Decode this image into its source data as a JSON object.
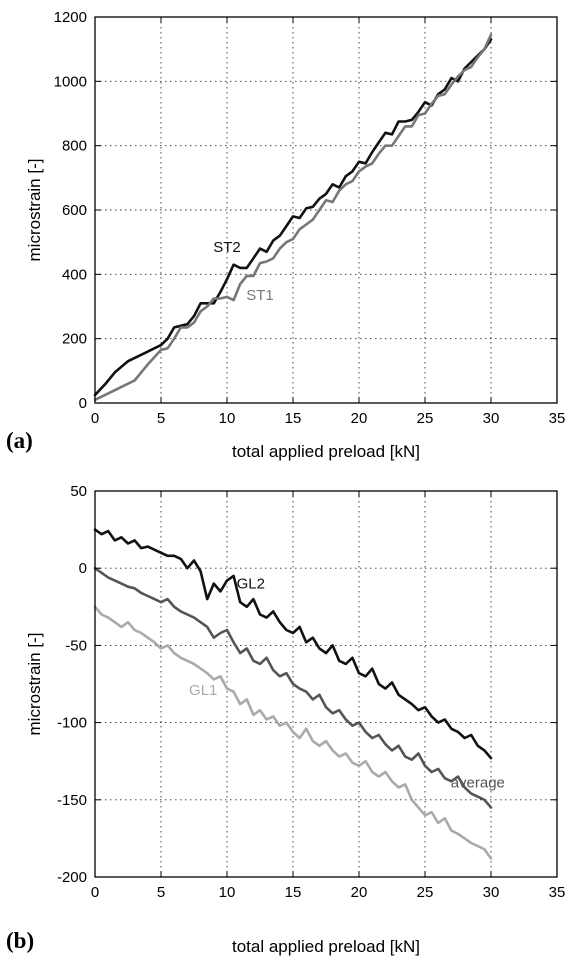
{
  "chart_data": [
    {
      "panel_label": "(a)",
      "type": "line",
      "xlabel": "total applied preload [kN]",
      "ylabel": "microstrain [-]",
      "xlim": [
        0,
        35
      ],
      "ylim": [
        0,
        1200
      ],
      "xticks": [
        0,
        5,
        10,
        15,
        20,
        25,
        30,
        35
      ],
      "yticks": [
        0,
        200,
        400,
        600,
        800,
        1000,
        1200
      ],
      "grid": true,
      "series": [
        {
          "name": "ST2",
          "color": "#111111",
          "x": [
            0,
            0.8,
            1.5,
            2.5,
            3.5,
            4.5,
            5,
            5.5,
            6,
            6.5,
            7,
            7.5,
            8,
            8.5,
            9,
            9.5,
            10,
            10.5,
            11,
            11.5,
            12,
            12.5,
            13,
            13.5,
            14,
            14.5,
            15,
            15.5,
            16,
            16.5,
            17,
            17.5,
            18,
            18.5,
            19,
            19.5,
            20,
            20.5,
            21,
            21.5,
            22,
            22.5,
            23,
            23.5,
            24,
            24.5,
            25,
            25.5,
            26,
            26.5,
            27,
            27.5,
            28,
            28.5,
            29,
            29.5,
            30
          ],
          "values": [
            25,
            60,
            95,
            130,
            150,
            170,
            180,
            200,
            235,
            240,
            245,
            270,
            310,
            310,
            310,
            345,
            385,
            430,
            420,
            420,
            450,
            480,
            470,
            505,
            520,
            550,
            580,
            575,
            605,
            610,
            635,
            650,
            680,
            670,
            705,
            720,
            750,
            745,
            780,
            810,
            840,
            835,
            875,
            875,
            880,
            905,
            935,
            925,
            960,
            975,
            1010,
            1000,
            1040,
            1060,
            1080,
            1100,
            1130
          ]
        },
        {
          "name": "ST1",
          "color": "#777777",
          "x": [
            0,
            1,
            2,
            3,
            4,
            5,
            5.5,
            6,
            6.5,
            7,
            7.5,
            8,
            8.5,
            9,
            9.5,
            10,
            10.5,
            11,
            11.5,
            12,
            12.5,
            13,
            13.5,
            14,
            14.5,
            15,
            15.5,
            16,
            16.5,
            17,
            17.5,
            18,
            18.5,
            19,
            19.5,
            20,
            20.5,
            21,
            21.5,
            22,
            22.5,
            23,
            23.5,
            24,
            24.5,
            25,
            25.5,
            26,
            26.5,
            27,
            27.5,
            28,
            28.5,
            29,
            29.5,
            30
          ],
          "values": [
            10,
            30,
            50,
            70,
            120,
            165,
            170,
            200,
            235,
            235,
            250,
            285,
            300,
            325,
            325,
            330,
            320,
            370,
            395,
            395,
            435,
            440,
            450,
            480,
            500,
            510,
            540,
            555,
            570,
            600,
            630,
            625,
            660,
            680,
            690,
            720,
            735,
            745,
            775,
            800,
            800,
            830,
            860,
            860,
            895,
            900,
            930,
            955,
            960,
            990,
            1015,
            1035,
            1045,
            1075,
            1100,
            1145
          ]
        }
      ],
      "annotations": [
        {
          "text": "ST2",
          "x": 10.0,
          "y": 470
        },
        {
          "text": "ST1",
          "x": 12.5,
          "y": 320
        }
      ]
    },
    {
      "panel_label": "(b)",
      "type": "line",
      "xlabel": "total applied preload [kN]",
      "ylabel": "microstrain [-]",
      "xlim": [
        0,
        35
      ],
      "ylim": [
        -200,
        50
      ],
      "xticks": [
        0,
        5,
        10,
        15,
        20,
        25,
        30,
        35
      ],
      "yticks": [
        -200,
        -150,
        -100,
        -50,
        0,
        50
      ],
      "grid": true,
      "series": [
        {
          "name": "GL2",
          "color": "#111111",
          "x": [
            0,
            0.5,
            1,
            1.5,
            2,
            2.5,
            3,
            3.5,
            4,
            4.5,
            5,
            5.5,
            6,
            6.5,
            7,
            7.5,
            8,
            8.5,
            9,
            9.5,
            10,
            10.5,
            11,
            11.5,
            12,
            12.5,
            13,
            13.5,
            14,
            14.5,
            15,
            15.5,
            16,
            16.5,
            17,
            17.5,
            18,
            18.5,
            19,
            19.5,
            20,
            20.5,
            21,
            21.5,
            22,
            22.5,
            23,
            23.5,
            24,
            24.5,
            25,
            25.5,
            26,
            26.5,
            27,
            27.5,
            28,
            28.5,
            29,
            29.5,
            30
          ],
          "values": [
            25,
            22,
            24,
            18,
            20,
            16,
            18,
            13,
            14,
            12,
            10,
            8,
            8,
            6,
            0,
            5,
            -2,
            -20,
            -10,
            -15,
            -8,
            -5,
            -22,
            -25,
            -20,
            -30,
            -32,
            -28,
            -35,
            -40,
            -42,
            -38,
            -48,
            -45,
            -52,
            -55,
            -50,
            -60,
            -62,
            -58,
            -68,
            -70,
            -65,
            -75,
            -78,
            -74,
            -82,
            -85,
            -88,
            -92,
            -90,
            -96,
            -100,
            -98,
            -104,
            -106,
            -110,
            -108,
            -115,
            -118,
            -123
          ]
        },
        {
          "name": "average",
          "color": "#555555",
          "x": [
            0,
            0.5,
            1,
            1.5,
            2,
            2.5,
            3,
            3.5,
            4,
            4.5,
            5,
            5.5,
            6,
            6.5,
            7,
            7.5,
            8,
            8.5,
            9,
            9.5,
            10,
            10.5,
            11,
            11.5,
            12,
            12.5,
            13,
            13.5,
            14,
            14.5,
            15,
            15.5,
            16,
            16.5,
            17,
            17.5,
            18,
            18.5,
            19,
            19.5,
            20,
            20.5,
            21,
            21.5,
            22,
            22.5,
            23,
            23.5,
            24,
            24.5,
            25,
            25.5,
            26,
            26.5,
            27,
            27.5,
            28,
            28.5,
            29,
            29.5,
            30
          ],
          "values": [
            0,
            -3,
            -6,
            -8,
            -10,
            -12,
            -13,
            -16,
            -18,
            -20,
            -22,
            -20,
            -25,
            -28,
            -30,
            -32,
            -35,
            -38,
            -45,
            -42,
            -40,
            -48,
            -55,
            -52,
            -60,
            -62,
            -58,
            -66,
            -70,
            -68,
            -75,
            -78,
            -80,
            -85,
            -82,
            -90,
            -94,
            -92,
            -98,
            -102,
            -100,
            -106,
            -110,
            -108,
            -114,
            -118,
            -115,
            -122,
            -124,
            -120,
            -128,
            -132,
            -130,
            -136,
            -138,
            -135,
            -142,
            -146,
            -148,
            -150,
            -155
          ]
        },
        {
          "name": "GL1",
          "color": "#aaaaaa",
          "x": [
            0,
            0.5,
            1,
            1.5,
            2,
            2.5,
            3,
            3.5,
            4,
            4.5,
            5,
            5.5,
            6,
            6.5,
            7,
            7.5,
            8,
            8.5,
            9,
            9.5,
            10,
            10.5,
            11,
            11.5,
            12,
            12.5,
            13,
            13.5,
            14,
            14.5,
            15,
            15.5,
            16,
            16.5,
            17,
            17.5,
            18,
            18.5,
            19,
            19.5,
            20,
            20.5,
            21,
            21.5,
            22,
            22.5,
            23,
            23.5,
            24,
            24.5,
            25,
            25.5,
            26,
            26.5,
            27,
            27.5,
            28,
            28.5,
            29,
            29.5,
            30
          ],
          "values": [
            -25,
            -30,
            -32,
            -35,
            -38,
            -35,
            -40,
            -42,
            -45,
            -48,
            -52,
            -50,
            -55,
            -58,
            -60,
            -62,
            -65,
            -68,
            -72,
            -70,
            -78,
            -80,
            -88,
            -85,
            -95,
            -92,
            -98,
            -96,
            -102,
            -100,
            -106,
            -110,
            -104,
            -112,
            -115,
            -112,
            -118,
            -122,
            -120,
            -126,
            -128,
            -125,
            -132,
            -135,
            -132,
            -138,
            -142,
            -140,
            -150,
            -155,
            -160,
            -158,
            -165,
            -162,
            -170,
            -172,
            -175,
            -178,
            -180,
            -182,
            -188
          ]
        }
      ],
      "annotations": [
        {
          "text": "GL2",
          "x": 11.8,
          "y": -13
        },
        {
          "text": "GL1",
          "x": 8.2,
          "y": -82
        },
        {
          "text": "average",
          "x": 29.0,
          "y": -142
        }
      ]
    }
  ]
}
